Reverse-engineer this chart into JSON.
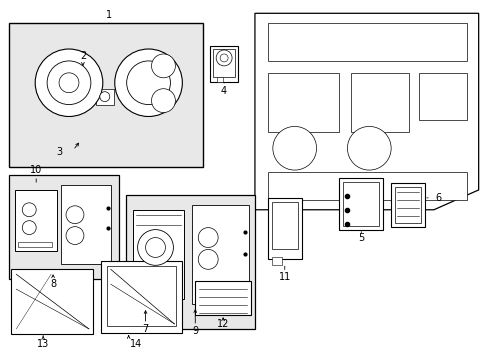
{
  "background_color": "#ffffff",
  "line_color": "#000000",
  "box_color": "#e8e8e8",
  "dark_box_color": "#d0d0d0"
}
